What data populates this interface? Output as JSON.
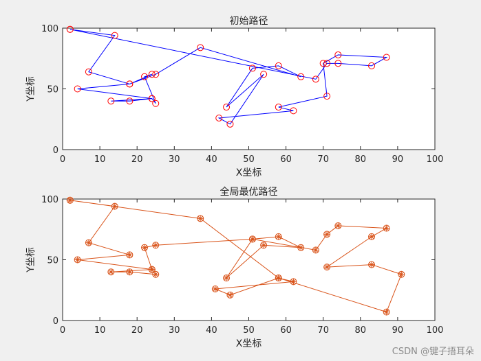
{
  "chart_data": [
    {
      "type": "line",
      "title": "初始路径",
      "xlabel": "X坐标",
      "ylabel": "Y坐标",
      "xlim": [
        0,
        100
      ],
      "ylim": [
        0,
        100
      ],
      "xticks": [
        0,
        10,
        20,
        30,
        40,
        50,
        60,
        70,
        80,
        90,
        100
      ],
      "yticks": [
        0,
        50,
        100
      ],
      "line_color": "#0000ff",
      "marker_color": "#ff0000",
      "marker": "o",
      "series": [
        {
          "x": [
            2,
            14,
            7,
            18,
            4,
            24,
            13,
            18,
            24,
            25,
            22,
            24,
            18,
            25,
            37,
            64,
            58,
            51,
            44,
            54,
            45,
            42,
            62,
            58,
            71,
            70,
            74,
            87,
            83,
            74,
            71,
            68,
            2
          ],
          "y": [
            99,
            94,
            64,
            54,
            50,
            42,
            40,
            40,
            42,
            38,
            60,
            62,
            54,
            62,
            84,
            60,
            69,
            67,
            35,
            62,
            21,
            26,
            32,
            35,
            44,
            71,
            78,
            76,
            69,
            71,
            71,
            58,
            99
          ]
        }
      ]
    },
    {
      "type": "line",
      "title": "全局最优路径",
      "xlabel": "X坐标",
      "ylabel": "Y坐标",
      "xlim": [
        0,
        100
      ],
      "ylim": [
        0,
        100
      ],
      "xticks": [
        0,
        10,
        20,
        30,
        40,
        50,
        60,
        70,
        80,
        90,
        100
      ],
      "yticks": [
        0,
        50,
        100
      ],
      "line_color": "#d95319",
      "marker_color": "#d95319",
      "marker": "circle-asterisk",
      "series": [
        {
          "x": [
            2,
            14,
            7,
            18,
            4,
            24,
            13,
            18,
            25,
            24,
            22,
            25,
            51,
            58,
            64,
            54,
            44,
            51,
            68,
            71,
            74,
            87,
            83,
            71,
            83,
            91,
            87,
            58,
            45,
            41,
            62,
            58,
            37,
            2
          ],
          "y": [
            99,
            94,
            64,
            54,
            50,
            42,
            40,
            40,
            38,
            42,
            60,
            62,
            67,
            69,
            60,
            62,
            35,
            67,
            58,
            71,
            78,
            76,
            69,
            44,
            46,
            38,
            7,
            35,
            21,
            26,
            32,
            35,
            84,
            99
          ]
        }
      ]
    }
  ],
  "watermark": "CSDN @键子捂耳朵"
}
